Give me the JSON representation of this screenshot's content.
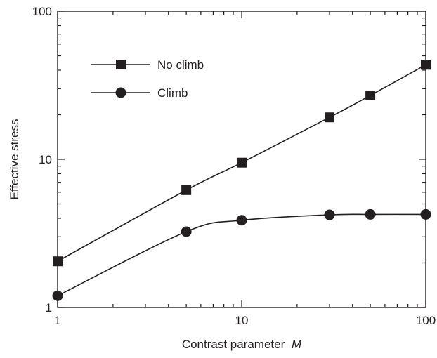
{
  "chart_data": {
    "type": "line",
    "title": "",
    "xlabel": "Contrast parameter",
    "xlabel_var": "M",
    "ylabel": "Effective stress",
    "xscale": "log",
    "yscale": "log",
    "xlim": [
      1,
      100
    ],
    "ylim": [
      1,
      100
    ],
    "xticks": [
      {
        "value": 1,
        "label": "1"
      },
      {
        "value": 10,
        "label": "10"
      },
      {
        "value": 100,
        "label": "100"
      }
    ],
    "yticks": [
      {
        "value": 1,
        "label": "1"
      },
      {
        "value": 10,
        "label": "10"
      },
      {
        "value": 100,
        "label": "100"
      }
    ],
    "grid": false,
    "legend_position": "top-left",
    "series": [
      {
        "name": "No climb",
        "marker": "square",
        "color": "#231f20",
        "x": [
          1,
          5,
          10,
          30,
          50,
          100
        ],
        "y": [
          2.05,
          6.2,
          9.5,
          19.2,
          27,
          43.5
        ]
      },
      {
        "name": "Climb",
        "marker": "circle",
        "color": "#231f20",
        "x": [
          1,
          5,
          10,
          30,
          50,
          100
        ],
        "y": [
          1.2,
          3.25,
          3.88,
          4.22,
          4.25,
          4.25
        ]
      }
    ]
  }
}
